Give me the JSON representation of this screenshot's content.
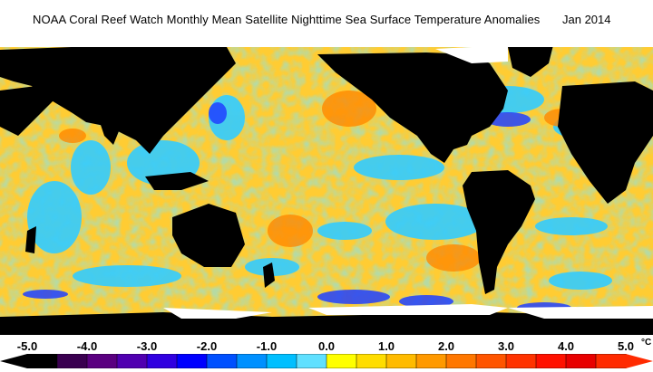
{
  "title": "NOAA Coral Reef Watch Monthly Mean Satellite Nighttime Sea Surface Temperature Anomalies",
  "date": "Jan 2014",
  "legend": {
    "ticks": [
      "-5.0",
      "-4.0",
      "-3.0",
      "-2.0",
      "-1.0",
      "0.0",
      "1.0",
      "2.0",
      "3.0",
      "4.0",
      "5.0"
    ],
    "unit": "°C",
    "colors": [
      "#000000",
      "#3a0050",
      "#5a0080",
      "#5000b0",
      "#3000e0",
      "#0000ff",
      "#0050ff",
      "#0090ff",
      "#00bfff",
      "#60e0ff",
      "#ffff00",
      "#ffdd00",
      "#ffbb00",
      "#ff9900",
      "#ff7700",
      "#ff5500",
      "#ff3300",
      "#ff1100",
      "#e80000",
      "#ff2a00"
    ]
  },
  "map": {
    "land_color": "#000000",
    "ice_color": "#ffffff",
    "ocean_warm": "#ffcc33",
    "ocean_cool": "#33ccff"
  }
}
